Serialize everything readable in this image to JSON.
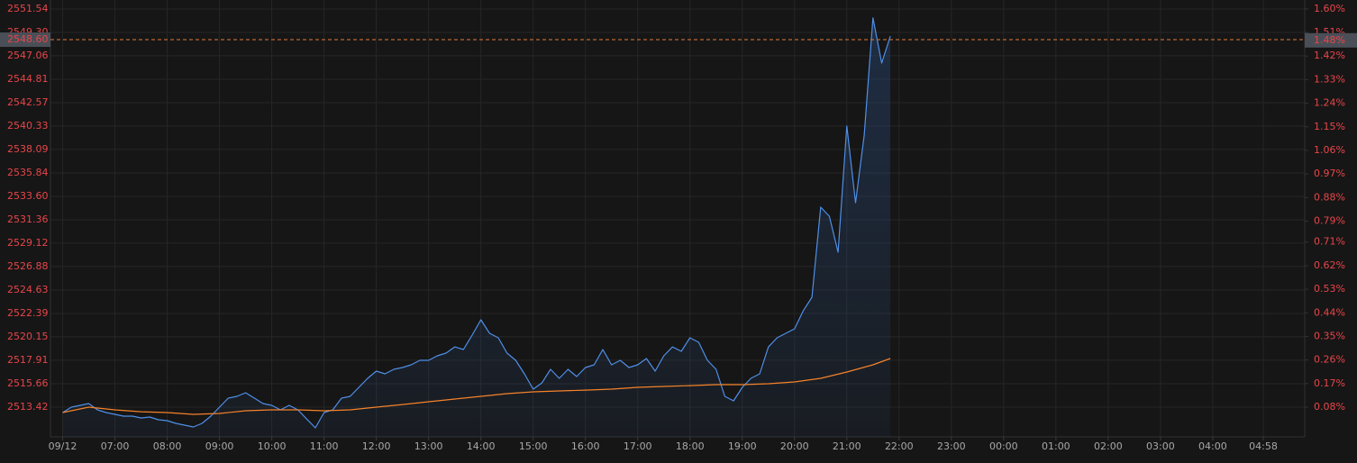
{
  "chart_data": {
    "type": "line",
    "xlim": [
      -14,
      1438
    ],
    "ylim": [
      2510.57,
      2552.4
    ],
    "y2lim": [
      -0.0335,
      1.634
    ],
    "grid": true,
    "xticks": [
      {
        "value": 0,
        "label": "09/12"
      },
      {
        "value": 60,
        "label": "07:00"
      },
      {
        "value": 120,
        "label": "08:00"
      },
      {
        "value": 180,
        "label": "09:00"
      },
      {
        "value": 240,
        "label": "10:00"
      },
      {
        "value": 300,
        "label": "11:00"
      },
      {
        "value": 360,
        "label": "12:00"
      },
      {
        "value": 420,
        "label": "13:00"
      },
      {
        "value": 480,
        "label": "14:00"
      },
      {
        "value": 540,
        "label": "15:00"
      },
      {
        "value": 600,
        "label": "16:00"
      },
      {
        "value": 660,
        "label": "17:00"
      },
      {
        "value": 720,
        "label": "18:00"
      },
      {
        "value": 780,
        "label": "19:00"
      },
      {
        "value": 840,
        "label": "20:00"
      },
      {
        "value": 900,
        "label": "21:00"
      },
      {
        "value": 960,
        "label": "22:00"
      },
      {
        "value": 1020,
        "label": "23:00"
      },
      {
        "value": 1080,
        "label": "00:00"
      },
      {
        "value": 1140,
        "label": "01:00"
      },
      {
        "value": 1200,
        "label": "02:00"
      },
      {
        "value": 1260,
        "label": "03:00"
      },
      {
        "value": 1320,
        "label": "04:00"
      },
      {
        "value": 1378,
        "label": "04:58"
      }
    ],
    "yticks": [
      2551.54,
      {
        "value": 2549.3,
        "label": "2549.30"
      },
      2547.06,
      2544.81,
      2542.57,
      2540.33,
      2538.09,
      2535.84,
      {
        "value": 2533.6,
        "label": "2533.60"
      },
      2531.36,
      2529.12,
      2526.88,
      2524.63,
      2522.39,
      2520.15,
      2517.91,
      2515.66,
      2513.42
    ],
    "y2ticks": [
      {
        "value": 1.6,
        "label": "1.60%"
      },
      {
        "value": 1.51,
        "label": "1.51%"
      },
      {
        "value": 1.42,
        "label": "1.42%"
      },
      {
        "value": 1.33,
        "label": "1.33%"
      },
      {
        "value": 1.24,
        "label": "1.24%"
      },
      {
        "value": 1.15,
        "label": "1.15%"
      },
      {
        "value": 1.06,
        "label": "1.06%"
      },
      {
        "value": 0.97,
        "label": "0.97%"
      },
      {
        "value": 0.88,
        "label": "0.88%"
      },
      {
        "value": 0.79,
        "label": "0.79%"
      },
      {
        "value": 0.71,
        "label": "0.71%"
      },
      {
        "value": 0.62,
        "label": "0.62%"
      },
      {
        "value": 0.53,
        "label": "0.53%"
      },
      {
        "value": 0.44,
        "label": "0.44%"
      },
      {
        "value": 0.35,
        "label": "0.35%"
      },
      {
        "value": 0.26,
        "label": "0.26%"
      },
      {
        "value": 0.17,
        "label": "0.17%"
      },
      {
        "value": 0.08,
        "label": "0.08%"
      }
    ],
    "last_price": {
      "value": 2548.6,
      "label": "2548.60"
    },
    "last_change": {
      "value": 1.48,
      "label": "1.48%"
    },
    "series": [
      {
        "color": "#4f8fe8",
        "area": true,
        "x": [
          0,
          10,
          20,
          30,
          40,
          50,
          60,
          70,
          80,
          90,
          100,
          110,
          120,
          130,
          140,
          150,
          160,
          170,
          180,
          190,
          200,
          210,
          220,
          230,
          240,
          250,
          260,
          270,
          280,
          290,
          300,
          310,
          320,
          330,
          340,
          350,
          360,
          370,
          380,
          390,
          400,
          410,
          420,
          430,
          440,
          450,
          460,
          470,
          480,
          490,
          500,
          510,
          520,
          530,
          540,
          550,
          560,
          570,
          580,
          590,
          600,
          610,
          620,
          630,
          640,
          650,
          660,
          670,
          680,
          690,
          700,
          710,
          720,
          730,
          740,
          750,
          760,
          770,
          780,
          790,
          800,
          810,
          820,
          830,
          840,
          850,
          860,
          870,
          880,
          890,
          900,
          910,
          920,
          930,
          940,
          950
        ],
        "values": [
          2512.9,
          2513.42,
          2513.59,
          2513.76,
          2513.16,
          2512.9,
          2512.73,
          2512.55,
          2512.55,
          2512.38,
          2512.47,
          2512.21,
          2512.12,
          2511.86,
          2511.69,
          2511.52,
          2511.86,
          2512.55,
          2513.42,
          2514.28,
          2514.45,
          2514.8,
          2514.28,
          2513.76,
          2513.59,
          2513.16,
          2513.59,
          2513.16,
          2512.29,
          2511.43,
          2512.9,
          2513.16,
          2514.28,
          2514.45,
          2515.31,
          2516.18,
          2516.87,
          2516.61,
          2517.04,
          2517.21,
          2517.47,
          2517.9,
          2517.9,
          2518.33,
          2518.59,
          2519.19,
          2518.94,
          2520.32,
          2521.78,
          2520.49,
          2520.06,
          2518.59,
          2517.9,
          2516.61,
          2515.14,
          2515.74,
          2517.04,
          2516.18,
          2517.04,
          2516.35,
          2517.21,
          2517.47,
          2518.94,
          2517.47,
          2517.9,
          2517.21,
          2517.47,
          2518.07,
          2516.87,
          2518.33,
          2519.19,
          2518.76,
          2520.06,
          2519.63,
          2517.9,
          2517.04,
          2514.45,
          2514.02,
          2515.31,
          2516.18,
          2516.61,
          2519.19,
          2520.06,
          2520.49,
          2520.92,
          2522.64,
          2523.94,
          2532.56,
          2531.7,
          2528.25,
          2540.33,
          2532.99,
          2539.46,
          2550.68,
          2546.36,
          2548.95
        ]
      },
      {
        "color": "#f5822a",
        "area": false,
        "x": [
          0,
          30,
          60,
          90,
          120,
          150,
          180,
          210,
          240,
          270,
          300,
          330,
          360,
          390,
          420,
          450,
          480,
          510,
          540,
          570,
          600,
          630,
          660,
          690,
          720,
          750,
          780,
          810,
          840,
          870,
          900,
          930,
          950
        ],
        "values": [
          2512.9,
          2513.42,
          2513.16,
          2512.98,
          2512.9,
          2512.73,
          2512.81,
          2513.07,
          2513.16,
          2513.16,
          2513.07,
          2513.16,
          2513.42,
          2513.67,
          2513.93,
          2514.19,
          2514.45,
          2514.71,
          2514.88,
          2514.97,
          2515.05,
          2515.14,
          2515.31,
          2515.4,
          2515.48,
          2515.57,
          2515.57,
          2515.66,
          2515.83,
          2516.18,
          2516.78,
          2517.47,
          2518.07
        ]
      }
    ]
  }
}
